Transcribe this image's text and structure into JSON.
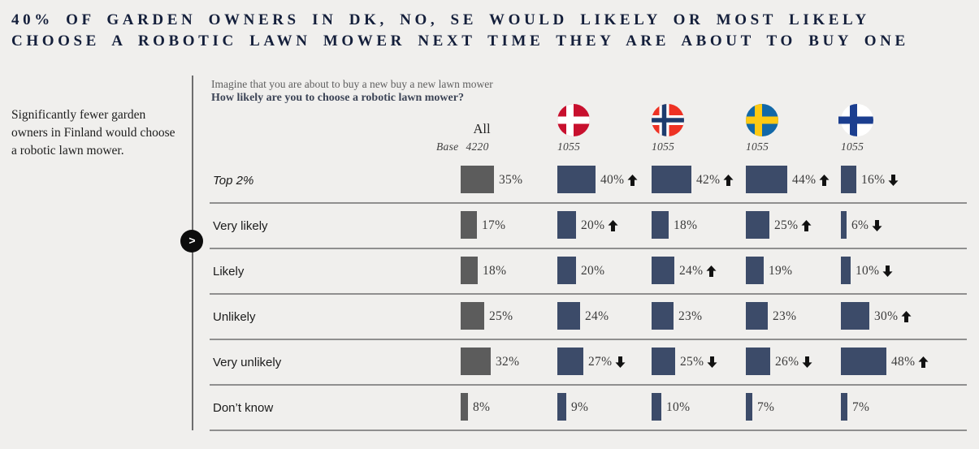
{
  "title_line1": "40% OF GARDEN OWNERS IN DK, NO, SE WOULD LIKELY OR MOST LIKELY",
  "title_line2": "CHOOSE A ROBOTIC LAWN MOWER NEXT TIME THEY ARE ABOUT TO BUY ONE",
  "side_note": "Significantly fewer garden owners in Finland would choose a robotic lawn mower.",
  "next_label": ">",
  "colors": {
    "background": "#f0efed",
    "title": "#141f3b",
    "navy_bar": "#3c4b69",
    "gray_bar": "#5c5c5c",
    "arrow": "#111111",
    "separator": "#8f8f8f"
  },
  "chart_data": {
    "type": "bar",
    "question_line1": "Imagine that you are about to buy a new buy a new lawn mower",
    "question_line2": "How likely are you to choose a robotic lawn mower?",
    "value_suffix": "%",
    "columns": [
      {
        "key": "all",
        "header": "All",
        "base_prefix": "Base",
        "base": "4220",
        "bar_color": "#5c5c5c"
      },
      {
        "key": "dk",
        "icon": "flag-denmark-icon",
        "base": "1055",
        "bar_color": "#3c4b69",
        "flag_colors": {
          "bg": "#c8102e",
          "cross": "#ffffff"
        }
      },
      {
        "key": "no",
        "icon": "flag-norway-icon",
        "base": "1055",
        "bar_color": "#3c4b69",
        "flag_colors": {
          "bg": "#ee3224",
          "cross": "#ffffff",
          "inner": "#1d3c6e"
        }
      },
      {
        "key": "se",
        "icon": "flag-sweden-icon",
        "base": "1055",
        "bar_color": "#3c4b69",
        "flag_colors": {
          "bg": "#1268a8",
          "cross": "#fdc913"
        }
      },
      {
        "key": "fi",
        "icon": "flag-finland-icon",
        "base": "1055",
        "bar_color": "#3c4b69",
        "flag_colors": {
          "bg": "#ffffff",
          "cross": "#1b3e8f"
        }
      }
    ],
    "rows": [
      {
        "label": "Top 2%",
        "italic": true,
        "values": [
          35,
          40,
          42,
          44,
          16
        ],
        "arrows": [
          null,
          "up",
          "up",
          "up",
          "down"
        ]
      },
      {
        "label": "Very likely",
        "values": [
          17,
          20,
          18,
          25,
          6
        ],
        "arrows": [
          null,
          "up",
          null,
          "up",
          "down"
        ]
      },
      {
        "label": "Likely",
        "values": [
          18,
          20,
          24,
          19,
          10
        ],
        "arrows": [
          null,
          null,
          "up",
          null,
          "down"
        ]
      },
      {
        "label": "Unlikely",
        "values": [
          25,
          24,
          23,
          23,
          30
        ],
        "arrows": [
          null,
          null,
          null,
          null,
          "up"
        ]
      },
      {
        "label": "Very unlikely",
        "values": [
          32,
          27,
          25,
          26,
          48
        ],
        "arrows": [
          null,
          "down",
          "down",
          "down",
          "up"
        ]
      },
      {
        "label": "Don’t know",
        "values": [
          8,
          9,
          10,
          7,
          7
        ],
        "arrows": [
          null,
          null,
          null,
          null,
          null
        ]
      }
    ]
  }
}
